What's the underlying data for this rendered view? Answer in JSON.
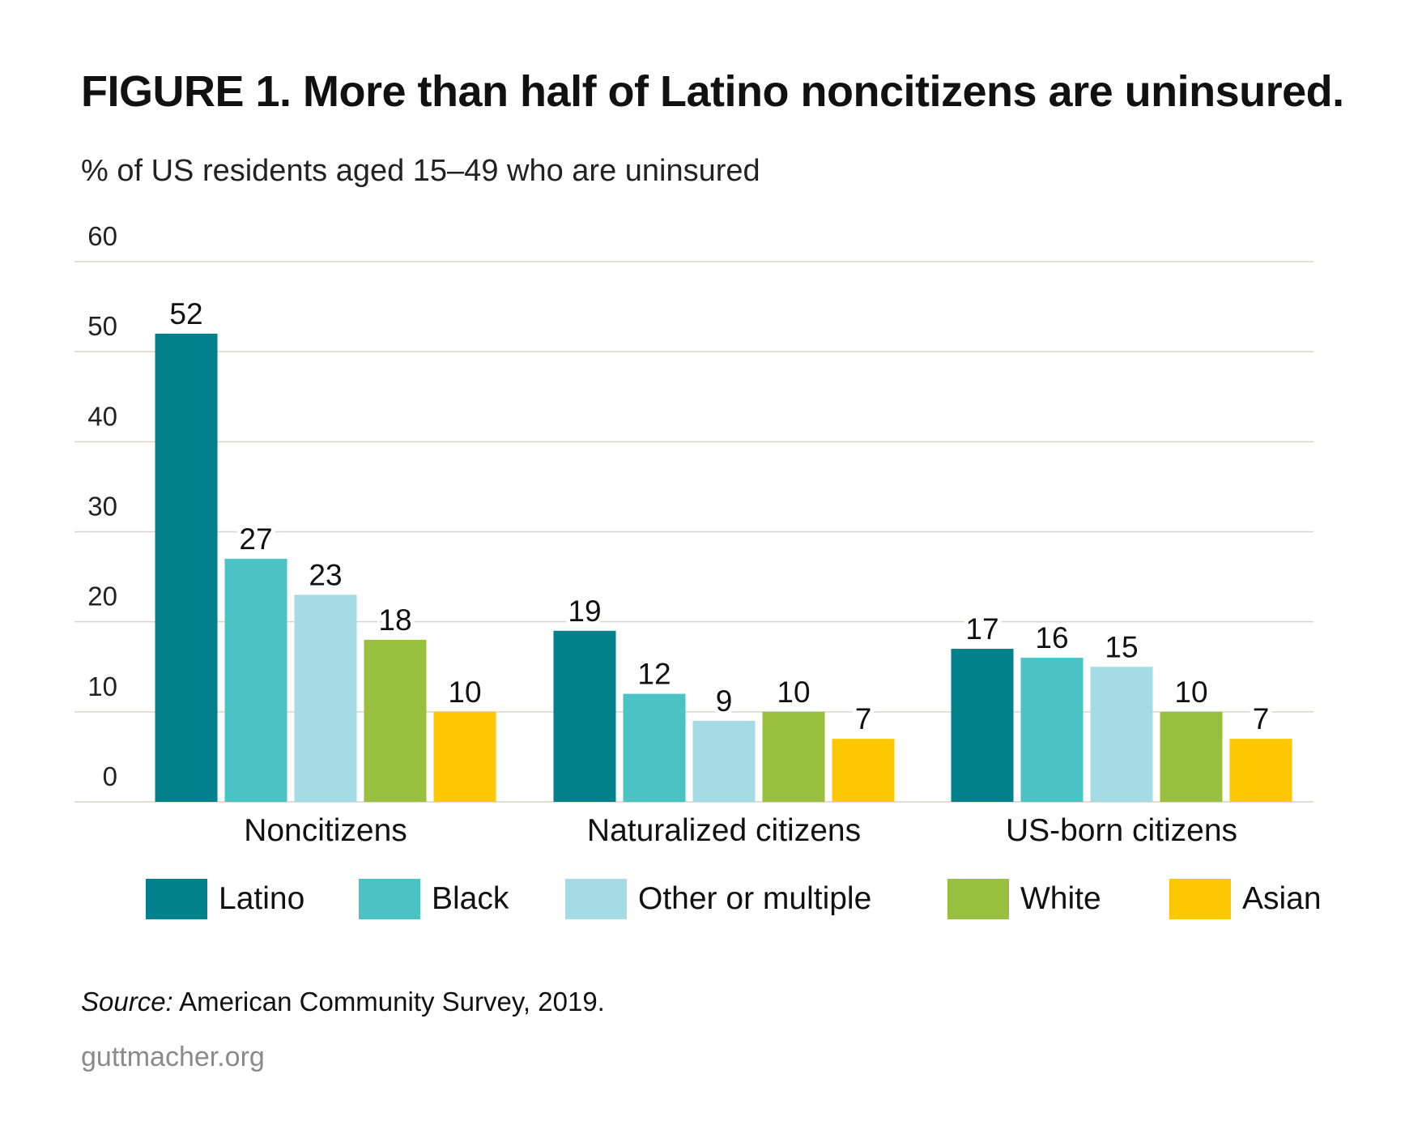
{
  "title": "FIGURE 1. More than half of Latino noncitizens are uninsured.",
  "chart_data": {
    "type": "bar",
    "title": "FIGURE 1. More than half of Latino noncitizens are uninsured.",
    "ylabel": "% of US residents aged 15–49 who are uninsured",
    "xlabel": "",
    "ylim": [
      0,
      60
    ],
    "yticks": [
      0,
      10,
      20,
      30,
      40,
      50,
      60
    ],
    "grid": true,
    "legend_position": "bottom",
    "categories": [
      "Noncitizens",
      "Naturalized citizens",
      "US-born citizens"
    ],
    "series": [
      {
        "name": "Latino",
        "color": "#02808b",
        "values": [
          52,
          19,
          17
        ]
      },
      {
        "name": "Black",
        "color": "#4bc3c4",
        "values": [
          27,
          12,
          16
        ]
      },
      {
        "name": "Other or multiple",
        "color": "#a5dbe4",
        "values": [
          23,
          9,
          15
        ]
      },
      {
        "name": "White",
        "color": "#98c03e",
        "values": [
          18,
          10,
          10
        ]
      },
      {
        "name": "Asian",
        "color": "#fdc800",
        "values": [
          10,
          7,
          7
        ]
      }
    ]
  },
  "source": {
    "label": "Source:",
    "text": " American Community Survey, 2019."
  },
  "site": "guttmacher.org"
}
